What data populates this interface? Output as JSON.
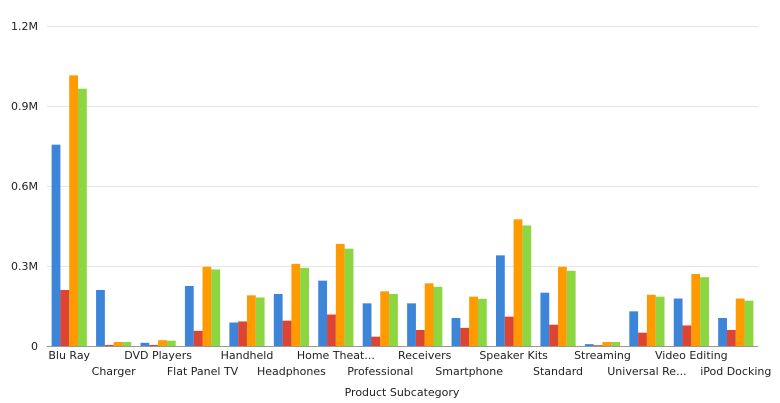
{
  "chart_data": {
    "type": "bar",
    "xlabel": "Product Subcategory",
    "ylabel": "",
    "ylim": [
      0,
      1200000
    ],
    "yticks": [
      {
        "value": 0,
        "label": "0"
      },
      {
        "value": 300000,
        "label": "0.3M"
      },
      {
        "value": 600000,
        "label": "0.6M"
      },
      {
        "value": 900000,
        "label": "0.9M"
      },
      {
        "value": 1200000,
        "label": "1.2M"
      }
    ],
    "categories": [
      "Blu Ray",
      "Charger",
      "DVD Players",
      "Flat Panel TV",
      "Handheld",
      "Headphones",
      "Home Theat...",
      "Professional",
      "Receivers",
      "Smartphone",
      "Speaker Kits",
      "Standard",
      "Streaming",
      "Universal Re...",
      "Video Editing",
      "iPod Docking"
    ],
    "colors": [
      "#3d85d8",
      "#dc4433",
      "#ff9a00",
      "#8cd641"
    ],
    "series": [
      {
        "values": [
          755000,
          210000,
          12000,
          225000,
          88000,
          195000,
          245000,
          160000,
          160000,
          105000,
          340000,
          200000,
          7000,
          130000,
          178000,
          105000
        ]
      },
      {
        "values": [
          210000,
          4000,
          4000,
          57000,
          92000,
          95000,
          118000,
          35000,
          60000,
          68000,
          110000,
          80000,
          3000,
          50000,
          77000,
          60000
        ]
      },
      {
        "values": [
          1015000,
          15000,
          22000,
          297000,
          190000,
          308000,
          383000,
          205000,
          235000,
          185000,
          475000,
          297000,
          15000,
          192000,
          270000,
          178000
        ]
      },
      {
        "values": [
          965000,
          15000,
          20000,
          287000,
          182000,
          293000,
          365000,
          195000,
          222000,
          177000,
          452000,
          282000,
          15000,
          185000,
          258000,
          170000
        ]
      }
    ]
  }
}
